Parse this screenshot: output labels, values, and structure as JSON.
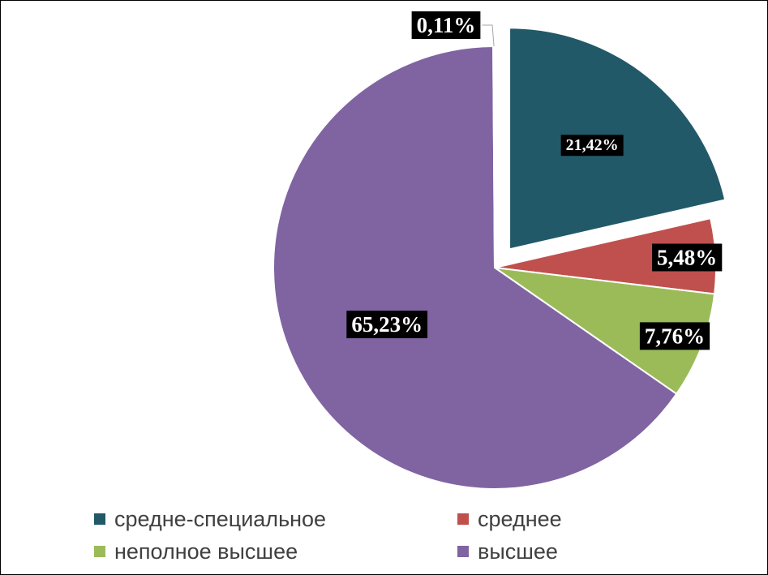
{
  "chart_data": {
    "type": "pie",
    "title": "",
    "legend_position": "bottom",
    "categories": [
      "средне-специальное",
      "среднее",
      "неполное высшее",
      "высшее",
      ""
    ],
    "values": [
      21.42,
      5.48,
      7.76,
      65.23,
      0.11
    ],
    "data_labels": [
      "21,42%",
      "5,48%",
      "7,76%",
      "65,23%",
      "0,11%"
    ],
    "colors": [
      "#215968",
      "#C0504D",
      "#9BBB59",
      "#8064A2",
      "#4BACC6"
    ],
    "exploded": [
      true,
      false,
      false,
      false,
      false
    ]
  },
  "legend": {
    "items": [
      {
        "label": "средне-специальное",
        "color": "#215968"
      },
      {
        "label": "среднее",
        "color": "#C0504D"
      },
      {
        "label": "неполное высшее",
        "color": "#9BBB59"
      },
      {
        "label": "высшее",
        "color": "#8064A2"
      }
    ]
  }
}
